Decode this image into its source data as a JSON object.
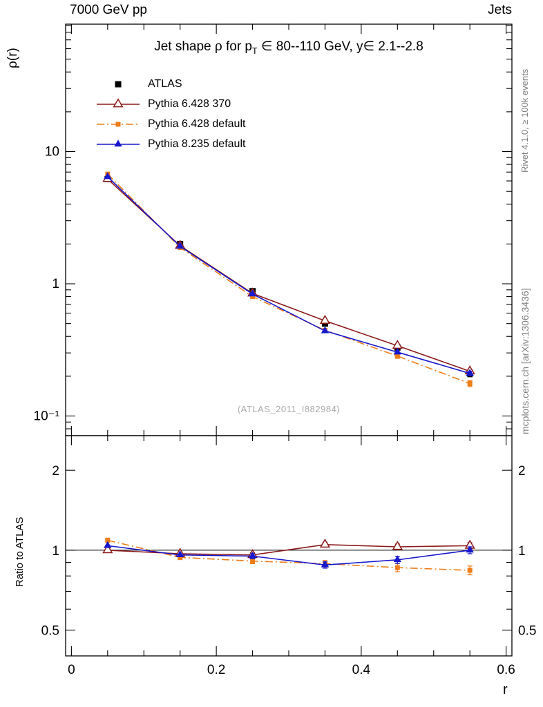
{
  "header": {
    "left": "7000 GeV pp",
    "right": "Jets"
  },
  "labels": {
    "y_top": "ρ(r)",
    "y_ratio": "Ratio to ATLAS",
    "x": "r",
    "watermark": "(ATLAS_2011_I882984)"
  },
  "title": {
    "pre": "Jet shape ρ for p",
    "sub": "T",
    "post": " ∈ 80--110 GeV, y∈ 2.1--2.8"
  },
  "right_margin": {
    "top": "Rivet 4.1.0, ≥ 100k events",
    "bottom": "mcplots.cern.ch [arXiv:1306.3436]"
  },
  "chart_data": {
    "type": "line",
    "x": [
      0.05,
      0.15,
      0.25,
      0.35,
      0.45,
      0.55
    ],
    "xlim": [
      -0.008,
      0.608
    ],
    "xticks": [
      {
        "value": 0,
        "label": "0"
      },
      {
        "value": 0.2,
        "label": "0.2"
      },
      {
        "value": 0.4,
        "label": "0.4"
      },
      {
        "value": 0.6,
        "label": "0.6"
      }
    ],
    "x_minor_step": 0.05,
    "xlabel": "r",
    "top_panel": {
      "ylabel": "ρ(r)",
      "yscale": "log",
      "ylim": [
        0.071,
        92
      ],
      "yticks": [
        {
          "value": 10,
          "label": "10"
        },
        {
          "value": 1,
          "label": "1"
        },
        {
          "value": 0.1,
          "label": "10⁻¹"
        }
      ],
      "series": [
        {
          "name": "ATLAS",
          "color": "#000000",
          "marker": "square-filled",
          "marker_size": 9,
          "line": "none",
          "values": [
            6.2,
            2.0,
            0.88,
            0.5,
            0.33,
            0.21
          ],
          "errors": [
            0.25,
            0.07,
            0.035,
            0.02,
            0.015,
            0.012
          ]
        },
        {
          "name": "Pythia 6.428 370",
          "color": "#8b1a1a",
          "marker": "triangle-open",
          "marker_size": 11,
          "line": "solid",
          "values": [
            6.2,
            1.94,
            0.845,
            0.525,
            0.34,
            0.218
          ],
          "errors": [
            0.08,
            0.03,
            0.015,
            0.012,
            0.01,
            0.008
          ]
        },
        {
          "name": "Pythia 6.428 default",
          "color": "#ee7d18",
          "marker": "square-filled",
          "marker_size": 7,
          "line": "dashdot",
          "values": [
            6.76,
            1.88,
            0.8,
            0.445,
            0.284,
            0.176
          ],
          "errors": [
            0.1,
            0.035,
            0.02,
            0.013,
            0.011,
            0.009
          ]
        },
        {
          "name": "Pythia 8.235 default",
          "color": "#1717cd",
          "marker": "triangle-filled",
          "marker_size": 10,
          "line": "solid",
          "values": [
            6.45,
            1.92,
            0.836,
            0.44,
            0.304,
            0.21
          ],
          "errors": [
            0.09,
            0.03,
            0.016,
            0.012,
            0.01,
            0.008
          ]
        }
      ]
    },
    "ratio_panel": {
      "ylabel": "Ratio to ATLAS",
      "yscale": "log",
      "ylim": [
        0.4,
        2.7
      ],
      "yticks": [
        {
          "value": 2,
          "label": "2"
        },
        {
          "value": 1,
          "label": "1"
        },
        {
          "value": 0.5,
          "label": "0.5"
        }
      ],
      "reference_line": 1,
      "series": [
        {
          "name": "Pythia 6.428 370",
          "color": "#8b1a1a",
          "marker": "triangle-open",
          "marker_size": 11,
          "line": "solid",
          "values": [
            1.0,
            0.97,
            0.96,
            1.05,
            1.03,
            1.04
          ],
          "errors": [
            0.015,
            0.015,
            0.018,
            0.022,
            0.025,
            0.028
          ]
        },
        {
          "name": "Pythia 6.428 default",
          "color": "#ee7d18",
          "marker": "square-filled",
          "marker_size": 7,
          "line": "dashdot",
          "values": [
            1.09,
            0.94,
            0.91,
            0.89,
            0.86,
            0.84
          ],
          "errors": [
            0.02,
            0.018,
            0.02,
            0.025,
            0.03,
            0.032
          ]
        },
        {
          "name": "Pythia 8.235 default",
          "color": "#1717cd",
          "marker": "triangle-filled",
          "marker_size": 10,
          "line": "solid",
          "values": [
            1.04,
            0.96,
            0.95,
            0.88,
            0.92,
            1.0
          ],
          "errors": [
            0.018,
            0.016,
            0.02,
            0.024,
            0.028,
            0.03
          ]
        }
      ]
    }
  }
}
